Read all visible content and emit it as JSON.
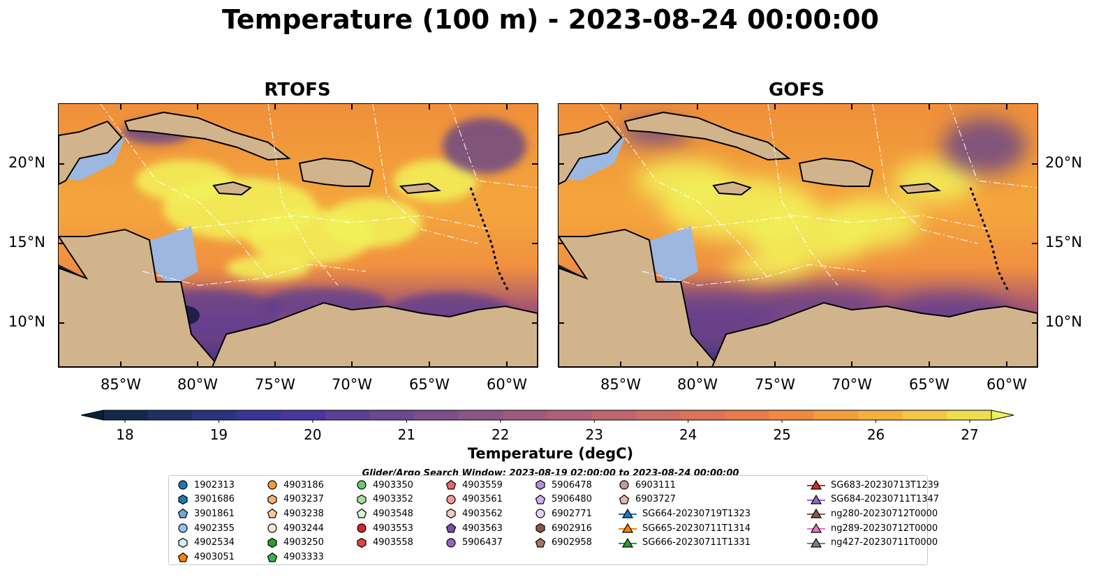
{
  "title": "Temperature (100 m) - 2023-08-24 00:00:00",
  "panels": [
    {
      "title": "RTOFS"
    },
    {
      "title": "GOFS"
    }
  ],
  "axes": {
    "lon_ticks": [
      "85°W",
      "80°W",
      "75°W",
      "70°W",
      "65°W",
      "60°W"
    ],
    "lat_ticks": [
      "20°N",
      "15°N",
      "10°N"
    ]
  },
  "colorbar": {
    "label": "Temperature (degC)",
    "ticks": [
      "18",
      "19",
      "20",
      "21",
      "22",
      "23",
      "24",
      "25",
      "26",
      "27"
    ],
    "range": [
      18,
      27
    ],
    "extend": "both"
  },
  "search_window": "Glider/Argo Search Window: 2023-08-19 02:00:00 to 2023-08-24 00:00:00",
  "legend": {
    "columns": [
      [
        {
          "label": "1902313",
          "marker": "circle",
          "color": "#1f77b4"
        },
        {
          "label": "3901686",
          "marker": "hexagon",
          "color": "#1f77b4"
        },
        {
          "label": "3901861",
          "marker": "pentagon",
          "color": "#6fa8dc"
        },
        {
          "label": "4902355",
          "marker": "circle",
          "color": "#8ec4f0"
        },
        {
          "label": "4902534",
          "marker": "hexagon",
          "color": "#d6ecfa"
        },
        {
          "label": "4903051",
          "marker": "pentagon",
          "color": "#ff7f0e"
        }
      ],
      [
        {
          "label": "4903186",
          "marker": "circle",
          "color": "#f39a3c"
        },
        {
          "label": "4903237",
          "marker": "hexagon",
          "color": "#f7b26b"
        },
        {
          "label": "4903238",
          "marker": "pentagon",
          "color": "#fbc89a"
        },
        {
          "label": "4903244",
          "marker": "circle",
          "color": "#fde6cc"
        },
        {
          "label": "4903250",
          "marker": "hexagon",
          "color": "#2ca02c"
        },
        {
          "label": "4903333",
          "marker": "pentagon",
          "color": "#3cb44b"
        }
      ],
      [
        {
          "label": "4903350",
          "marker": "circle",
          "color": "#6cc96c"
        },
        {
          "label": "4903352",
          "marker": "hexagon",
          "color": "#a6e3a1"
        },
        {
          "label": "4903548",
          "marker": "pentagon",
          "color": "#d9f5d3"
        },
        {
          "label": "4903553",
          "marker": "circle",
          "color": "#d62728"
        },
        {
          "label": "4903558",
          "marker": "hexagon",
          "color": "#e04444"
        }
      ],
      [
        {
          "label": "4903559",
          "marker": "pentagon",
          "color": "#e8666a"
        },
        {
          "label": "4903561",
          "marker": "circle",
          "color": "#f29a9a"
        },
        {
          "label": "4903562",
          "marker": "hexagon",
          "color": "#f8c6c6"
        },
        {
          "label": "4903563",
          "marker": "pentagon",
          "color": "#7b4fb0"
        },
        {
          "label": "5906437",
          "marker": "circle",
          "color": "#9467bd"
        }
      ],
      [
        {
          "label": "5906478",
          "marker": "hexagon",
          "color": "#b391d9"
        },
        {
          "label": "5906480",
          "marker": "pentagon",
          "color": "#cfb3ec"
        },
        {
          "label": "6902771",
          "marker": "circle",
          "color": "#e6d3f7"
        },
        {
          "label": "6902916",
          "marker": "hexagon",
          "color": "#8c564b"
        },
        {
          "label": "6902958",
          "marker": "pentagon",
          "color": "#a67560"
        }
      ],
      [
        {
          "label": "6903111",
          "marker": "circle",
          "color": "#c49c94"
        },
        {
          "label": "6903727",
          "marker": "pentagon",
          "color": "#e0b9b0"
        },
        {
          "label": "SG664-20230719T1323",
          "marker": "triangle-line",
          "color": "#1f77b4"
        },
        {
          "label": "SG665-20230711T1314",
          "marker": "triangle-line",
          "color": "#ff7f0e"
        },
        {
          "label": "SG666-20230711T1331",
          "marker": "triangle-line",
          "color": "#2ca02c"
        }
      ],
      [
        {
          "label": "SG683-20230713T1239",
          "marker": "triangle-line",
          "color": "#d62728"
        },
        {
          "label": "SG684-20230711T1347",
          "marker": "triangle-line",
          "color": "#9467bd"
        },
        {
          "label": "ng280-20230712T0000",
          "marker": "triangle-line",
          "color": "#8c564b"
        },
        {
          "label": "ng289-20230712T0000",
          "marker": "triangle-line",
          "color": "#e377c2"
        },
        {
          "label": "ng427-20230711T0000",
          "marker": "triangle-line",
          "color": "#7f7f7f"
        }
      ]
    ]
  },
  "colors": {
    "land": "#d2b48c",
    "shelf": "#9cb8e0",
    "warm": "#f2f25a",
    "cold": "#1e1f4a",
    "mid": "#e58a3c"
  }
}
